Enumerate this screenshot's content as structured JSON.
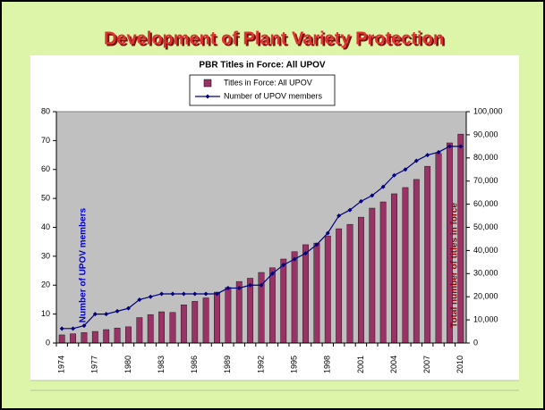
{
  "title": "Development of Plant Variety Protection",
  "chart_data": {
    "type": "bar",
    "title": "PBR Titles in Force:  All UPOV",
    "ylabel": "Number of UPOV members",
    "y2label": "Total number of titles in force",
    "categories": [
      "1974",
      null,
      null,
      "1977",
      null,
      null,
      "1980",
      null,
      null,
      "1983",
      null,
      null,
      "1986",
      null,
      null,
      "1989",
      null,
      null,
      "1992",
      null,
      null,
      "1995",
      null,
      null,
      "1998",
      null,
      null,
      "2001",
      null,
      null,
      "2004",
      null,
      null,
      "2007",
      null,
      null,
      "2010"
    ],
    "series": [
      {
        "name": "Titles in Force:  All UPOV",
        "type": "bar",
        "axis": "y2",
        "color": "#993366",
        "values": [
          3500,
          4000,
          4500,
          5000,
          5800,
          6500,
          7000,
          11000,
          12300,
          13500,
          13200,
          16500,
          18000,
          19500,
          22000,
          24000,
          26600,
          28000,
          30500,
          32500,
          36300,
          39500,
          42500,
          43200,
          46300,
          49400,
          51300,
          54400,
          58300,
          61000,
          64500,
          67200,
          70700,
          76400,
          81900,
          86500,
          90300
        ]
      },
      {
        "name": "Number of UPOV members",
        "type": "line",
        "color": "#000080",
        "values": [
          5,
          5,
          6,
          10,
          10,
          11,
          12,
          15,
          16,
          17,
          17,
          17,
          17,
          17,
          17,
          19,
          19,
          20,
          20,
          24,
          27,
          29,
          31,
          34,
          38,
          44,
          46,
          49,
          51,
          54,
          58,
          60,
          63,
          65,
          66,
          68,
          68
        ]
      }
    ],
    "ylim": [
      0,
      80
    ],
    "yticks": [
      0,
      10,
      20,
      30,
      40,
      50,
      60,
      70,
      80
    ],
    "y2lim": [
      0,
      100000
    ],
    "y2ticks": [
      0,
      {
        "value": 10000,
        "label": "10,000"
      },
      {
        "value": 20000,
        "label": "20,000"
      },
      {
        "value": 30000,
        "label": "30,000"
      },
      {
        "value": 40000,
        "label": "40,000"
      },
      {
        "value": 50000,
        "label": "50,000"
      },
      {
        "value": 60000,
        "label": "60,000"
      },
      {
        "value": 70000,
        "label": "70,000"
      },
      {
        "value": 80000,
        "label": "80,000"
      },
      {
        "value": 90000,
        "label": "90,000"
      },
      {
        "value": 100000,
        "label": "100,000"
      }
    ],
    "legend": "top"
  }
}
